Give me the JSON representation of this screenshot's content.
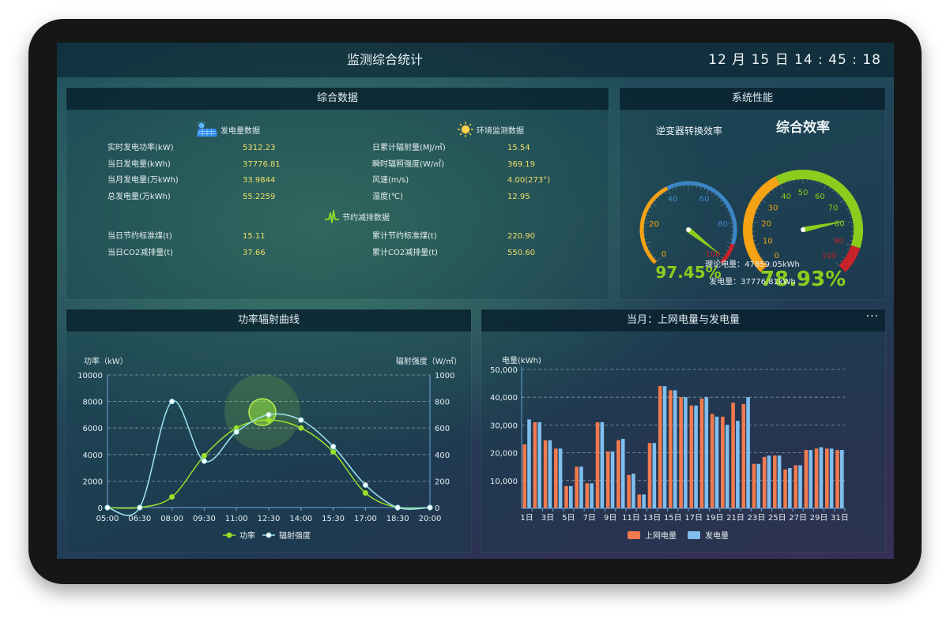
{
  "header": {
    "title": "监测综合统计",
    "clock": "12 月 15 日  14 : 45 : 18"
  },
  "summary": {
    "title": "综合数据",
    "power_section": {
      "title": "发电量数据",
      "icon": "solar-panel-icon",
      "rows": [
        {
          "label": "实时发电功率(kW)",
          "value": "5312.23"
        },
        {
          "label": "当日发电量(kWh)",
          "value": "37776.81"
        },
        {
          "label": "当月发电量(万kWh)",
          "value": "33.9844"
        },
        {
          "label": "总发电量(万kWh)",
          "value": "55.2259"
        }
      ]
    },
    "env_section": {
      "title": "环境监测数据",
      "icon": "sun-icon",
      "rows": [
        {
          "label": "日累计辐射量(MJ/㎡)",
          "value": "15.54"
        },
        {
          "label": "瞬时辐照强度(W/㎡)",
          "value": "369.19"
        },
        {
          "label": "风速(m/s)",
          "value": "4.00(273°)"
        },
        {
          "label": "温度(℃)",
          "value": "12.95"
        }
      ]
    },
    "saving_section": {
      "title": "节约减排数据",
      "icon": "pulse-icon",
      "rows": [
        {
          "label": "当日节约标准煤(t)",
          "value": "15.11"
        },
        {
          "label": "当日CO2减排量(t)",
          "value": "37.66"
        },
        {
          "label": "累计节约标准煤(t)",
          "value": "220.90"
        },
        {
          "label": "累计CO2减排量(t)",
          "value": "550.60"
        }
      ]
    }
  },
  "performance": {
    "title": "系统性能",
    "inverter": {
      "title": "逆变器转换效率",
      "value": 97.45,
      "value_text": "97.45%",
      "ticks": [
        "0",
        "20",
        "40",
        "60",
        "80",
        "100"
      ]
    },
    "overall": {
      "title": "综合效率",
      "value": 78.93,
      "value_text": "78.93%",
      "ticks": [
        "0",
        "10",
        "20",
        "30",
        "40",
        "50",
        "60",
        "70",
        "80",
        "90",
        "100"
      ]
    },
    "theory_text": "理论电量：47859.05kWh",
    "gen_text": "发电量：37776.81kWh",
    "colors": {
      "green": "#8ccc1c",
      "orange": "#f5a214",
      "blue": "#3d86c6",
      "red": "#c8222a"
    }
  },
  "power_curve": {
    "title": "功率辐射曲线",
    "chart_data": {
      "type": "line",
      "x": [
        "05:00",
        "06:30",
        "08:00",
        "09:30",
        "11:00",
        "12:30",
        "14:00",
        "15:30",
        "17:00",
        "18:30",
        "20:00"
      ],
      "ylabel": "功率（kW）",
      "y2label": "辐射强度（W/㎡）",
      "ylim": [
        0,
        10000
      ],
      "y2lim": [
        0,
        1000
      ],
      "yticks": [
        "0",
        "2000",
        "4000",
        "6000",
        "8000",
        "10000"
      ],
      "y2ticks": [
        "0",
        "200",
        "400",
        "600",
        "800",
        "1000"
      ],
      "grid": true,
      "legend": "bottom",
      "series": [
        {
          "name": "功率",
          "axis": "left",
          "color": "#9be02a",
          "values": [
            0,
            0,
            800,
            3900,
            6000,
            6600,
            6000,
            4200,
            1100,
            0,
            0
          ]
        },
        {
          "name": "辐射强度",
          "axis": "right",
          "color": "#9fe6f2",
          "values": [
            0,
            0,
            800,
            350,
            570,
            700,
            660,
            460,
            170,
            0,
            0
          ]
        }
      ]
    }
  },
  "monthly": {
    "title": "当月：上网电量与发电量",
    "more_label": "···",
    "chart_data": {
      "type": "bar",
      "categories": [
        "1日",
        "2日",
        "3日",
        "4日",
        "5日",
        "6日",
        "7日",
        "8日",
        "9日",
        "10日",
        "11日",
        "12日",
        "13日",
        "14日",
        "15日",
        "16日",
        "17日",
        "18日",
        "19日",
        "20日",
        "21日",
        "22日",
        "23日",
        "24日",
        "25日",
        "26日",
        "27日",
        "28日",
        "29日",
        "30日",
        "31日"
      ],
      "xtick_labels": [
        "1日",
        "",
        "3日",
        "",
        "5日",
        "",
        "7日",
        "",
        "9日",
        "",
        "11日",
        "",
        "13日",
        "",
        "15日",
        "",
        "17日",
        "",
        "19日",
        "",
        "21日",
        "",
        "23日",
        "",
        "25日",
        "",
        "27日",
        "",
        "29日",
        "",
        "31日"
      ],
      "ylabel": "电量(kWh)",
      "ylim": [
        0,
        50000
      ],
      "yticks": [
        "10,000",
        "20,000",
        "30,000",
        "40,000",
        "50,000"
      ],
      "grid": true,
      "legend": "bottom",
      "series": [
        {
          "name": "上网电量",
          "color": "#f27a4e",
          "values": [
            23000,
            31000,
            24500,
            21500,
            8000,
            15000,
            9000,
            31000,
            20500,
            24500,
            12000,
            5000,
            23500,
            44000,
            42500,
            40000,
            37000,
            39500,
            34000,
            33000,
            38000,
            37500,
            16000,
            18500,
            19000,
            14000,
            15500,
            21000,
            21500,
            21500,
            21000
          ]
        },
        {
          "name": "发电量",
          "color": "#7fbfef",
          "values": [
            32000,
            31000,
            24500,
            21500,
            8000,
            15000,
            9000,
            31000,
            20500,
            25000,
            12500,
            5000,
            23500,
            44000,
            42500,
            40000,
            37000,
            40000,
            33000,
            30000,
            31500,
            40000,
            16000,
            19000,
            19000,
            14500,
            15500,
            21000,
            22000,
            21500,
            21000
          ]
        }
      ]
    }
  }
}
